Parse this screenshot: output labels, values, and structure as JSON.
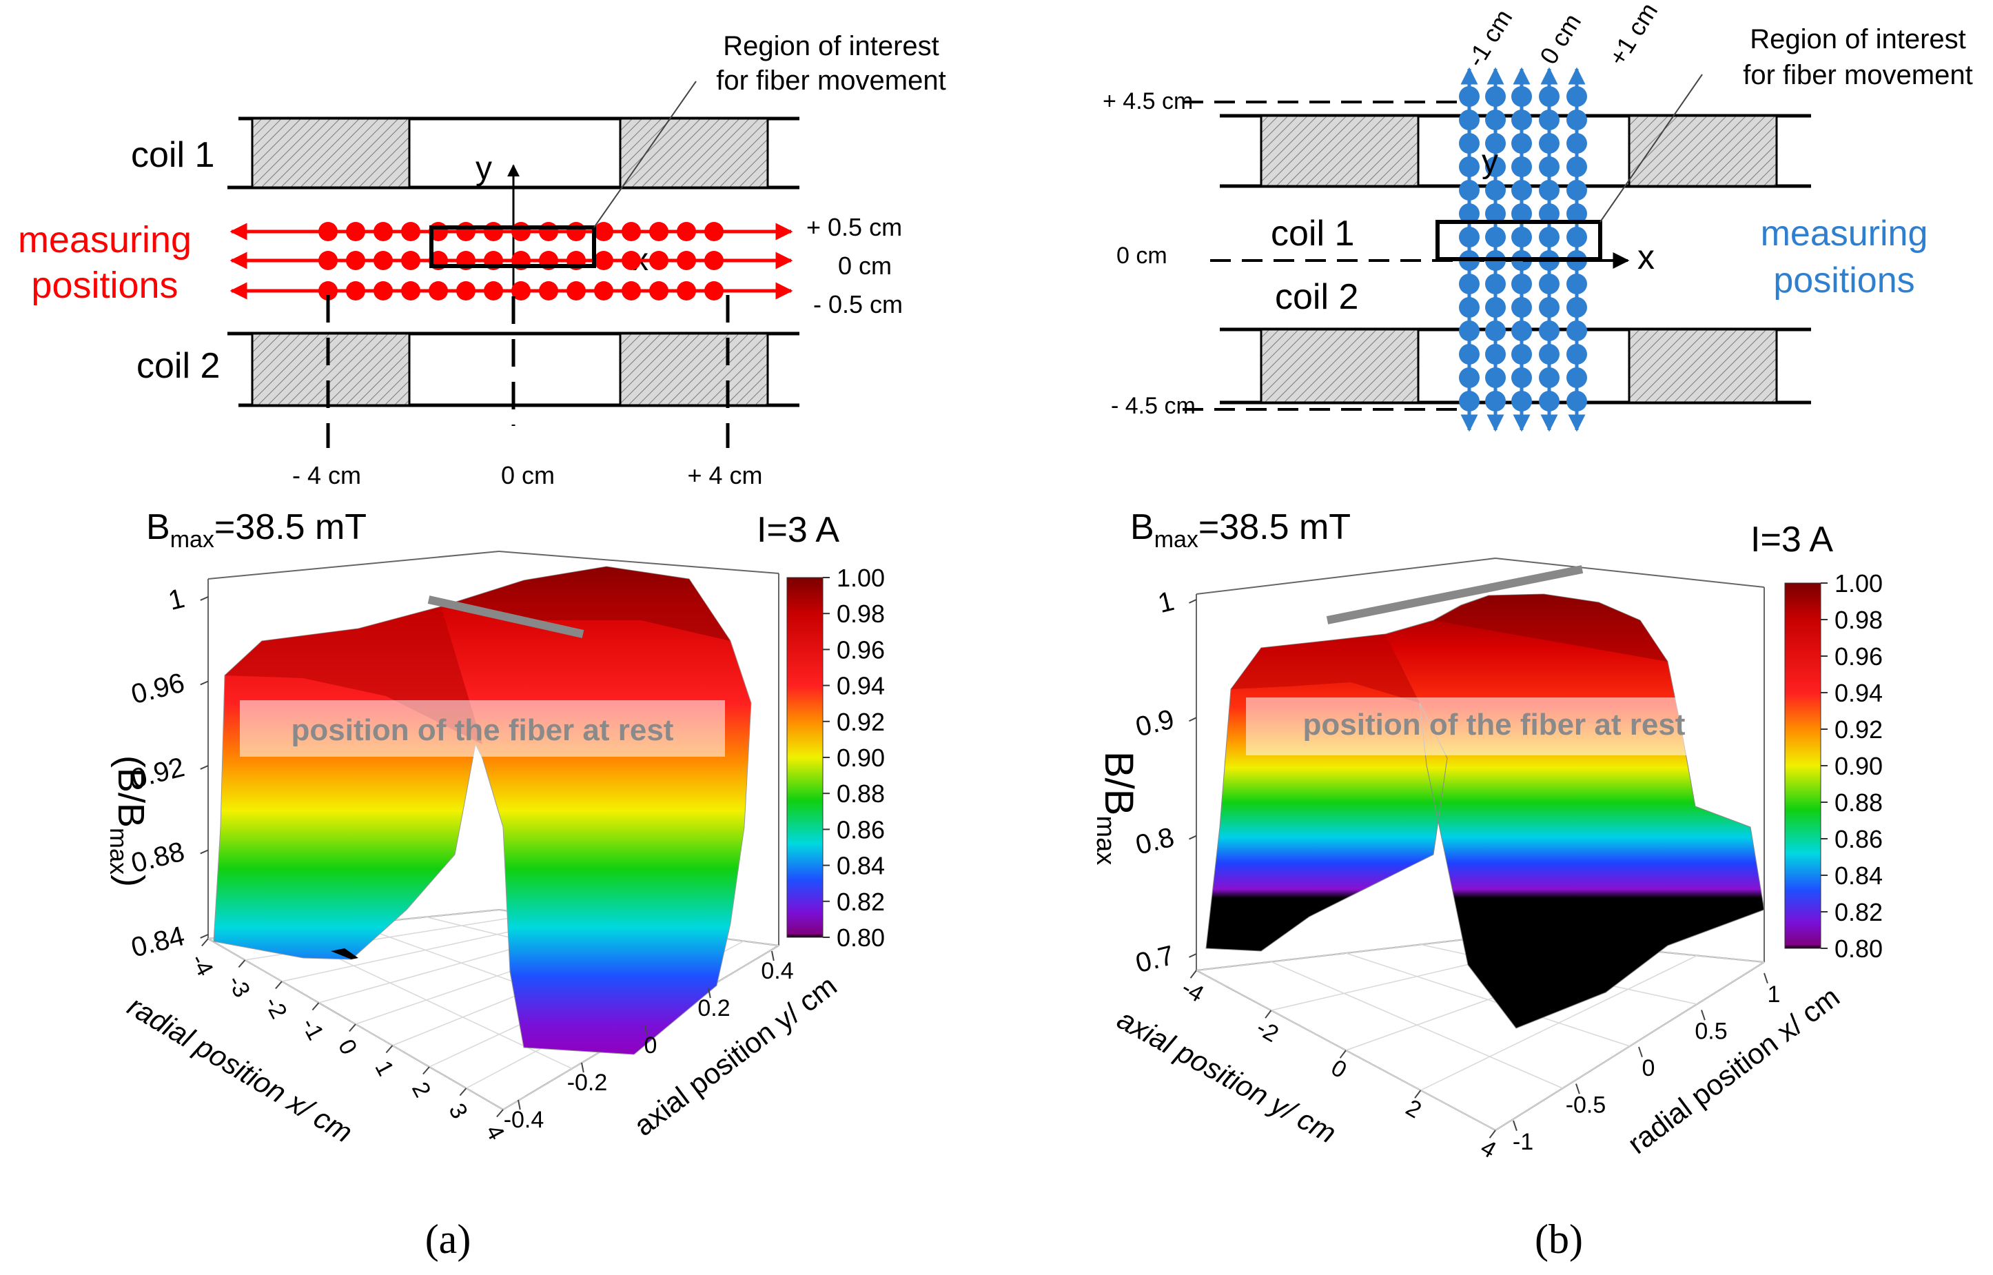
{
  "panel_a": {
    "diagram": {
      "coil_top": "coil 1",
      "coil_bottom": "coil 2",
      "axis_y": "y",
      "axis_x": "x",
      "roi": [
        "Region of interest",
        "for fiber movement"
      ],
      "measuring": [
        "measuring",
        "positions"
      ],
      "row_labels": [
        "+ 0.5 cm",
        "0 cm",
        "- 0.5 cm"
      ],
      "x_marks": [
        "- 4 cm",
        "0 cm",
        "+ 4 cm"
      ],
      "accent_color": "#ff0000"
    },
    "caption": "(a)"
  },
  "panel_b": {
    "diagram": {
      "coil_top": "coil 1",
      "coil_bottom": "coil 2",
      "axis_y": "y",
      "axis_x": "x",
      "roi": [
        "Region of interest",
        "for fiber movement"
      ],
      "measuring": [
        "measuring",
        "positions"
      ],
      "col_labels": [
        "-1 cm",
        "0 cm",
        "+1 cm"
      ],
      "y_marks": [
        "+ 4.5 cm",
        "0 cm",
        "- 4.5 cm"
      ],
      "accent_color": "#2e7fd0"
    },
    "caption": "(b)"
  },
  "chart_data": [
    {
      "type": "surface3d",
      "title_prefix": "B",
      "title_sub": "max",
      "title_suffix": "=38.5 mT",
      "current_label": "I=3 A",
      "zlabel_parts": [
        "(B/B",
        "max",
        ")"
      ],
      "xlabel": "radial position x/ cm",
      "ylabel": "axial position y/ cm",
      "x_ticks": [
        "-4",
        "-3",
        "-2",
        "-1",
        "0",
        "1",
        "2",
        "3",
        "4"
      ],
      "y_ticks": [
        "-0.4",
        "-0.2",
        "0",
        "0.2",
        "0.4"
      ],
      "z_ticks": [
        "0.84",
        "0.88",
        "0.92",
        "0.96",
        "1"
      ],
      "zlim": [
        0.84,
        1.0
      ],
      "annotation": "position of the fiber at rest",
      "colorbar_ticks": [
        "1.00",
        "0.98",
        "0.96",
        "0.94",
        "0.92",
        "0.90",
        "0.88",
        "0.86",
        "0.84",
        "0.82",
        "0.80"
      ],
      "colorbar_range": [
        0.8,
        1.0
      ],
      "profile": {
        "x": [
          -4,
          -3,
          -2,
          -1,
          0,
          1,
          2,
          3,
          4
        ],
        "values": [
          0.86,
          0.955,
          0.98,
          0.985,
          0.99,
          0.99,
          0.985,
          0.97,
          0.86
        ]
      }
    },
    {
      "type": "surface3d",
      "title_prefix": "B",
      "title_sub": "max",
      "title_suffix": "=38.5 mT",
      "current_label": "I=3 A",
      "zlabel_parts": [
        "B/B",
        "max"
      ],
      "xlabel": "axial position y/ cm",
      "ylabel": "radial position x/ cm",
      "x_ticks": [
        "-4",
        "-2",
        "0",
        "2",
        "4"
      ],
      "y_ticks": [
        "-1",
        "-0.5",
        "0",
        "0.5",
        "1"
      ],
      "z_ticks": [
        "0.7",
        "0.8",
        "0.9",
        "1"
      ],
      "zlim": [
        0.7,
        1.0
      ],
      "annotation": "position of the fiber at rest",
      "colorbar_ticks": [
        "1.00",
        "0.98",
        "0.96",
        "0.94",
        "0.92",
        "0.90",
        "0.88",
        "0.86",
        "0.84",
        "0.82",
        "0.80"
      ],
      "colorbar_range": [
        0.8,
        1.0
      ],
      "profile": {
        "x": [
          -4,
          -2,
          0,
          2,
          4
        ],
        "values": [
          0.7,
          0.93,
          0.98,
          0.97,
          0.72
        ]
      }
    }
  ]
}
